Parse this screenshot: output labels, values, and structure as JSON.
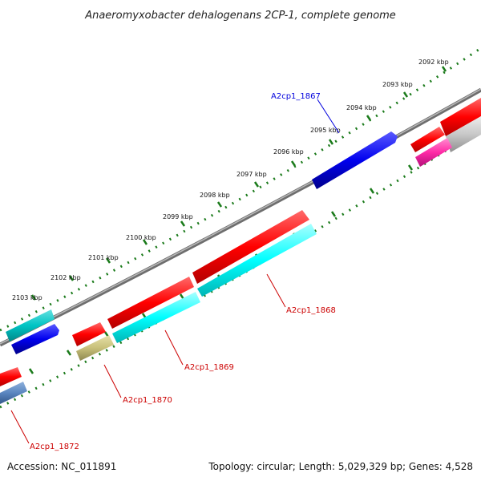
{
  "title": "Anaeromyxobacter dehalogenans 2CP-1, complete genome",
  "footer": {
    "accession": "Accession: NC_011891",
    "summary": "Topology: circular; Length: 5,029,329 bp; Genes: 4,528"
  },
  "kbp_labels": [
    "2092 kbp",
    "2093 kbp",
    "2094 kbp",
    "2095 kbp",
    "2096 kbp",
    "2097 kbp",
    "2098 kbp",
    "2099 kbp",
    "2100 kbp",
    "2101 kbp",
    "2102 kbp",
    "2103 kbp"
  ],
  "genes": [
    {
      "label": "A2cp1_1867",
      "color": "#0000dd"
    },
    {
      "label": "A2cp1_1868",
      "color": "#cc0000"
    },
    {
      "label": "A2cp1_1869",
      "color": "#cc0000"
    },
    {
      "label": "A2cp1_1870",
      "color": "#cc0000"
    },
    {
      "label": "A2cp1_1872",
      "color": "#cc0000"
    }
  ],
  "colors": {
    "backbone": "#8a8a8a",
    "ticks": "#1a7a1a",
    "red": "#ff0000",
    "cyan": "#00ffff",
    "blue": "#0000ee",
    "teal": "#00cccc",
    "olive": "#c8c07a",
    "steel": "#5a86c0",
    "magenta": "#ff2aa6",
    "grey": "#c8c8c8"
  }
}
